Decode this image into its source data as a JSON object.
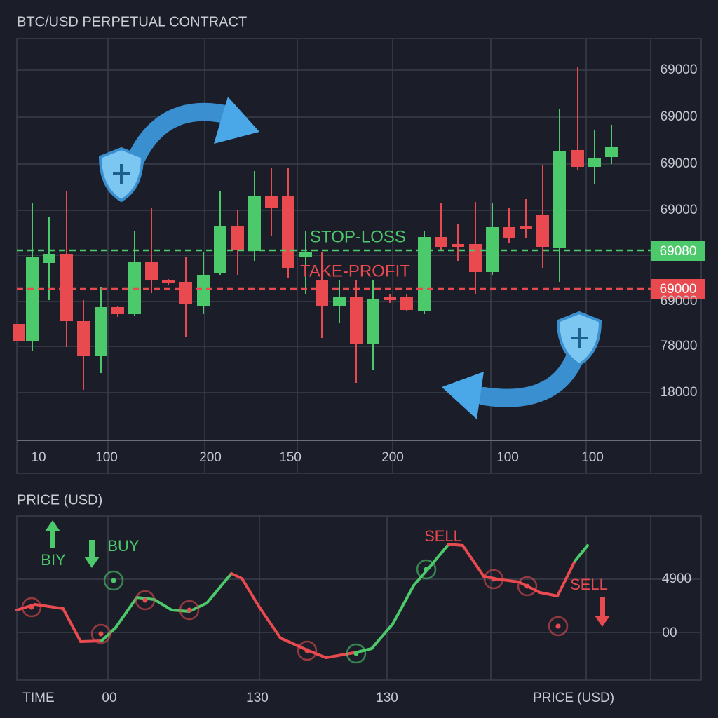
{
  "header": {
    "title": "BTC/USD PERPETUAL CONTRACT"
  },
  "main_chart": {
    "y_axis_labels": [
      "69000",
      "69000",
      "69000",
      "69000",
      "69000",
      "78000",
      "18000"
    ],
    "x_axis_labels": [
      "10",
      "100",
      "200",
      "150",
      "200",
      "100",
      "100"
    ],
    "stop_loss": {
      "label": "STOP-LOSS",
      "tag": "69080"
    },
    "take_profit": {
      "label": "TAKE-PROFIT",
      "tag": "69000"
    }
  },
  "lower_panel": {
    "title": "PRICE (USD)",
    "y_axis_labels": [
      "4900",
      "00"
    ],
    "x_axis_labels": [
      "TIME",
      "00",
      "130",
      "130",
      "PRICE (USD)"
    ],
    "annotations": [
      "BUY",
      "BIY",
      "SELL",
      "SELL"
    ]
  }
}
